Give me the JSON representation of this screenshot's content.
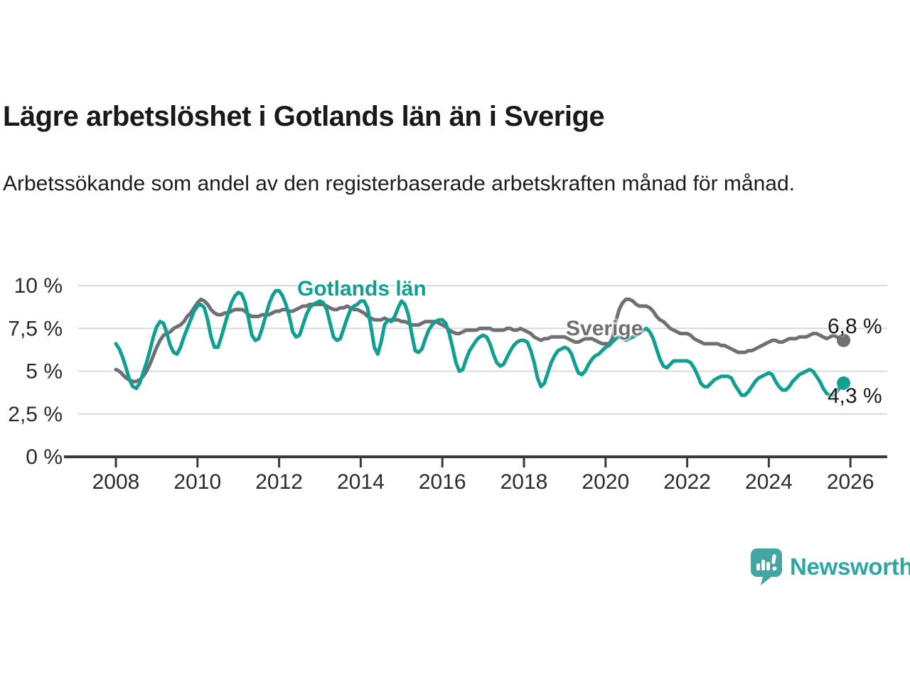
{
  "title": "Lägre arbetslöshet i Gotlands län än i Sverige",
  "subtitle": "Arbetssökande som andel av den registerbaserade arbetskraften månad för månad.",
  "colors": {
    "gotland": "#10a091",
    "sverige": "#6f6f74",
    "grid": "#d9d9d9",
    "axis": "#3a3a3a",
    "tick_text": "#2b2b2b",
    "logo": "#2ea6a2",
    "logo_icon": "#43a6a2"
  },
  "logo": {
    "text": "Newsworthy"
  },
  "chart_data": {
    "type": "line",
    "title": "Lägre arbetslöshet i Gotlands län än i Sverige",
    "subtitle": "Arbetssökande som andel av den registerbaserade arbetskraften månad för månad.",
    "unit": "%",
    "x_start_year": 2008,
    "x_step": "monthly",
    "x_ticks": [
      2008,
      2010,
      2012,
      2014,
      2016,
      2018,
      2020,
      2022,
      2024,
      2026
    ],
    "y_ticks": [
      {
        "value": 0,
        "label": "0 %"
      },
      {
        "value": 2.5,
        "label": "2,5 %"
      },
      {
        "value": 5,
        "label": "5 %"
      },
      {
        "value": 7.5,
        "label": "7,5 %"
      },
      {
        "value": 10,
        "label": "10 %"
      }
    ],
    "ylim": [
      0,
      10.5
    ],
    "xlim": [
      2007.1,
      2026.9
    ],
    "grid": true,
    "legend_position": "inline-labels",
    "series": [
      {
        "name": "Sverige",
        "color": "#6f6f74",
        "end_label": "6,8 %",
        "end_value": 6.8,
        "values": [
          5.1,
          5.0,
          4.8,
          4.6,
          4.5,
          4.4,
          4.4,
          4.5,
          4.7,
          5.0,
          5.4,
          5.9,
          6.4,
          6.8,
          7.1,
          7.2,
          7.3,
          7.5,
          7.6,
          7.7,
          7.9,
          8.2,
          8.4,
          8.7,
          9.0,
          9.2,
          9.1,
          8.9,
          8.6,
          8.4,
          8.3,
          8.3,
          8.4,
          8.4,
          8.5,
          8.6,
          8.6,
          8.6,
          8.5,
          8.3,
          8.2,
          8.2,
          8.2,
          8.3,
          8.3,
          8.3,
          8.4,
          8.5,
          8.5,
          8.6,
          8.6,
          8.5,
          8.5,
          8.6,
          8.7,
          8.8,
          8.8,
          8.9,
          8.9,
          8.9,
          8.9,
          8.9,
          8.8,
          8.7,
          8.6,
          8.6,
          8.7,
          8.7,
          8.8,
          8.7,
          8.6,
          8.6,
          8.5,
          8.4,
          8.2,
          8.1,
          8.0,
          8.0,
          8.0,
          8.1,
          8.0,
          8.0,
          8.0,
          8.0,
          7.9,
          7.9,
          7.8,
          7.7,
          7.7,
          7.7,
          7.8,
          7.9,
          7.9,
          7.9,
          7.9,
          7.8,
          7.7,
          7.6,
          7.4,
          7.3,
          7.2,
          7.2,
          7.3,
          7.4,
          7.4,
          7.4,
          7.4,
          7.5,
          7.5,
          7.5,
          7.5,
          7.4,
          7.4,
          7.4,
          7.4,
          7.5,
          7.5,
          7.4,
          7.4,
          7.5,
          7.4,
          7.3,
          7.2,
          7.0,
          6.9,
          6.8,
          6.9,
          6.9,
          7.0,
          7.0,
          7.0,
          7.0,
          7.0,
          6.9,
          6.8,
          6.7,
          6.7,
          6.8,
          6.9,
          6.9,
          6.9,
          6.8,
          6.7,
          6.6,
          6.6,
          6.6,
          6.9,
          7.9,
          8.6,
          9.0,
          9.2,
          9.2,
          9.1,
          8.9,
          8.8,
          8.8,
          8.8,
          8.7,
          8.5,
          8.2,
          8.0,
          7.9,
          7.7,
          7.5,
          7.4,
          7.3,
          7.2,
          7.2,
          7.2,
          7.1,
          6.9,
          6.8,
          6.7,
          6.6,
          6.6,
          6.6,
          6.6,
          6.6,
          6.5,
          6.5,
          6.4,
          6.3,
          6.2,
          6.1,
          6.1,
          6.1,
          6.2,
          6.2,
          6.3,
          6.4,
          6.5,
          6.6,
          6.7,
          6.8,
          6.8,
          6.7,
          6.7,
          6.8,
          6.9,
          6.9,
          6.9,
          7.0,
          7.0,
          7.0,
          7.1,
          7.2,
          7.2,
          7.1,
          7.0,
          6.9,
          7.0,
          7.1,
          7.0,
          6.9,
          6.8
        ]
      },
      {
        "name": "Gotlands län",
        "color": "#10a091",
        "end_label": "4,3 %",
        "end_value": 4.3,
        "values": [
          6.6,
          6.3,
          5.8,
          5.2,
          4.5,
          4.1,
          4.0,
          4.3,
          4.9,
          5.5,
          6.2,
          7.0,
          7.6,
          7.9,
          7.8,
          7.2,
          6.5,
          6.1,
          6.0,
          6.4,
          7.0,
          7.5,
          8.0,
          8.5,
          8.8,
          8.9,
          8.7,
          8.0,
          7.0,
          6.4,
          6.4,
          7.0,
          7.7,
          8.4,
          9.0,
          9.4,
          9.6,
          9.5,
          9.0,
          8.1,
          7.1,
          6.8,
          6.9,
          7.5,
          8.2,
          8.9,
          9.4,
          9.7,
          9.7,
          9.4,
          8.9,
          8.2,
          7.3,
          7.0,
          7.1,
          7.7,
          8.3,
          8.7,
          8.9,
          9.0,
          9.1,
          9.0,
          8.6,
          7.8,
          7.0,
          6.8,
          6.9,
          7.5,
          8.1,
          8.6,
          8.8,
          8.9,
          9.1,
          9.1,
          8.7,
          7.6,
          6.4,
          6.0,
          6.7,
          7.7,
          8.0,
          7.9,
          8.2,
          8.7,
          9.1,
          8.9,
          8.3,
          7.2,
          6.2,
          6.1,
          6.3,
          6.9,
          7.4,
          7.7,
          7.9,
          8.0,
          8.0,
          7.8,
          7.2,
          6.4,
          5.5,
          5.0,
          5.1,
          5.7,
          6.2,
          6.5,
          6.8,
          7.0,
          7.1,
          7.0,
          6.6,
          6.0,
          5.5,
          5.3,
          5.4,
          5.8,
          6.2,
          6.5,
          6.7,
          6.8,
          6.8,
          6.7,
          6.2,
          5.5,
          4.6,
          4.1,
          4.3,
          4.9,
          5.5,
          5.9,
          6.2,
          6.3,
          6.4,
          6.3,
          6.0,
          5.4,
          4.9,
          4.8,
          5.0,
          5.4,
          5.7,
          5.9,
          6.0,
          6.2,
          6.4,
          6.5,
          6.7,
          6.9,
          7.0,
          6.9,
          6.8,
          6.9,
          7.0,
          7.1,
          7.2,
          7.4,
          7.5,
          7.3,
          6.9,
          6.3,
          5.7,
          5.3,
          5.2,
          5.4,
          5.6,
          5.6,
          5.6,
          5.6,
          5.6,
          5.5,
          5.2,
          4.8,
          4.3,
          4.1,
          4.1,
          4.3,
          4.5,
          4.6,
          4.7,
          4.7,
          4.7,
          4.6,
          4.2,
          3.9,
          3.6,
          3.6,
          3.8,
          4.1,
          4.4,
          4.6,
          4.7,
          4.8,
          4.9,
          4.8,
          4.4,
          4.1,
          3.9,
          3.9,
          4.1,
          4.4,
          4.6,
          4.8,
          4.9,
          5.0,
          5.1,
          5.0,
          4.7,
          4.4,
          4.0,
          3.7,
          3.6,
          3.6,
          3.8,
          4.1,
          4.3
        ]
      }
    ]
  }
}
